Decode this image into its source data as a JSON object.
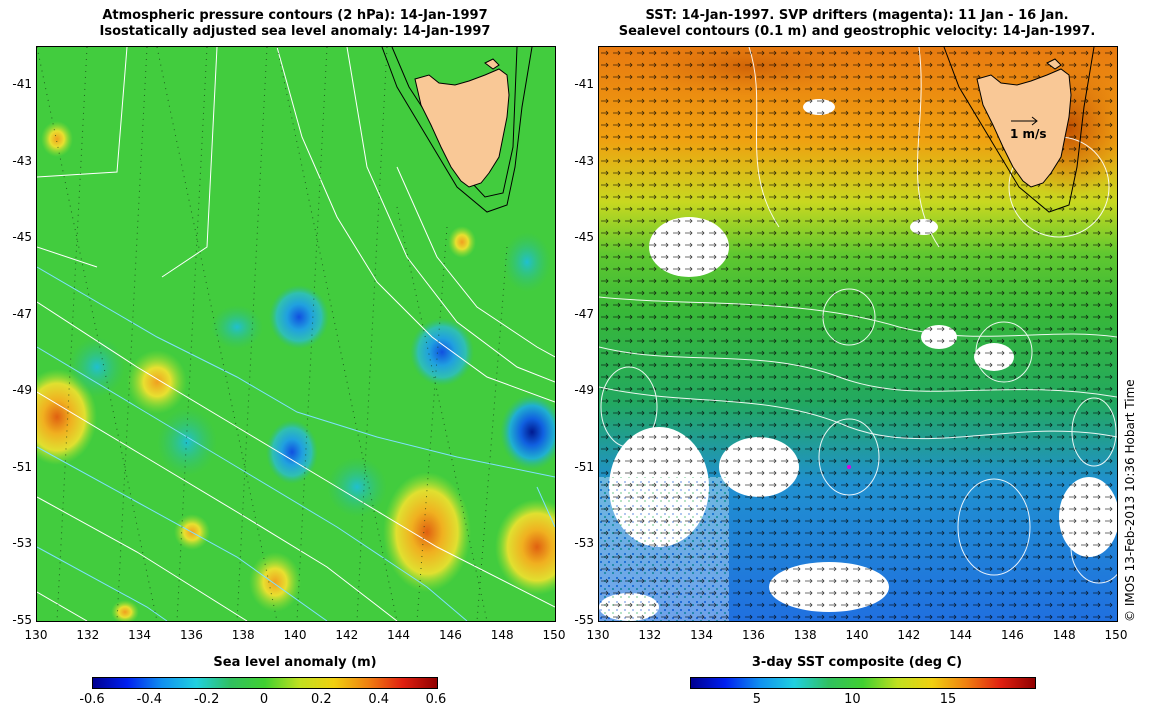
{
  "left_panel": {
    "title_line1": "Atmospheric pressure contours (2 hPa): 14-Jan-1997",
    "title_line2": "Isostatically adjusted sea level anomaly: 14-Jan-1997",
    "colorbar_title": "Sea level anomaly (m)",
    "colorbar_ticks": [
      "-0.6",
      "-0.4",
      "-0.2",
      "0",
      "0.2",
      "0.4",
      "0.6"
    ]
  },
  "right_panel": {
    "title_line1": "SST: 14-Jan-1997. SVP drifters (magenta): 11 Jan - 16 Jan.",
    "title_line2": "Sealevel contours (0.1 m) and geostrophic velocity: 14-Jan-1997.",
    "colorbar_title": "3-day SST composite (deg C)",
    "colorbar_ticks": [
      "5",
      "10",
      "15"
    ],
    "scale_arrow_label": "1 m/s"
  },
  "axes": {
    "lon_ticks": [
      "130",
      "132",
      "134",
      "136",
      "138",
      "140",
      "142",
      "144",
      "146",
      "148",
      "150"
    ],
    "lat_ticks": [
      "-41",
      "-43",
      "-45",
      "-47",
      "-49",
      "-51",
      "-53",
      "-55"
    ]
  },
  "credit": "© IMOS 13-Feb-2013 10:36 Hobart Time",
  "colors": {
    "land": "#f9c896",
    "contour_white": "#ffffff",
    "contour_cyan": "#7fe0ff",
    "bathymetry": "#000000",
    "sst_warm": "#e07a10",
    "sst_mid": "#30c030",
    "sst_cold": "#1e90e0",
    "ssh_base": "#3ccc3c"
  },
  "colormap_icon": "jet-colorbar"
}
